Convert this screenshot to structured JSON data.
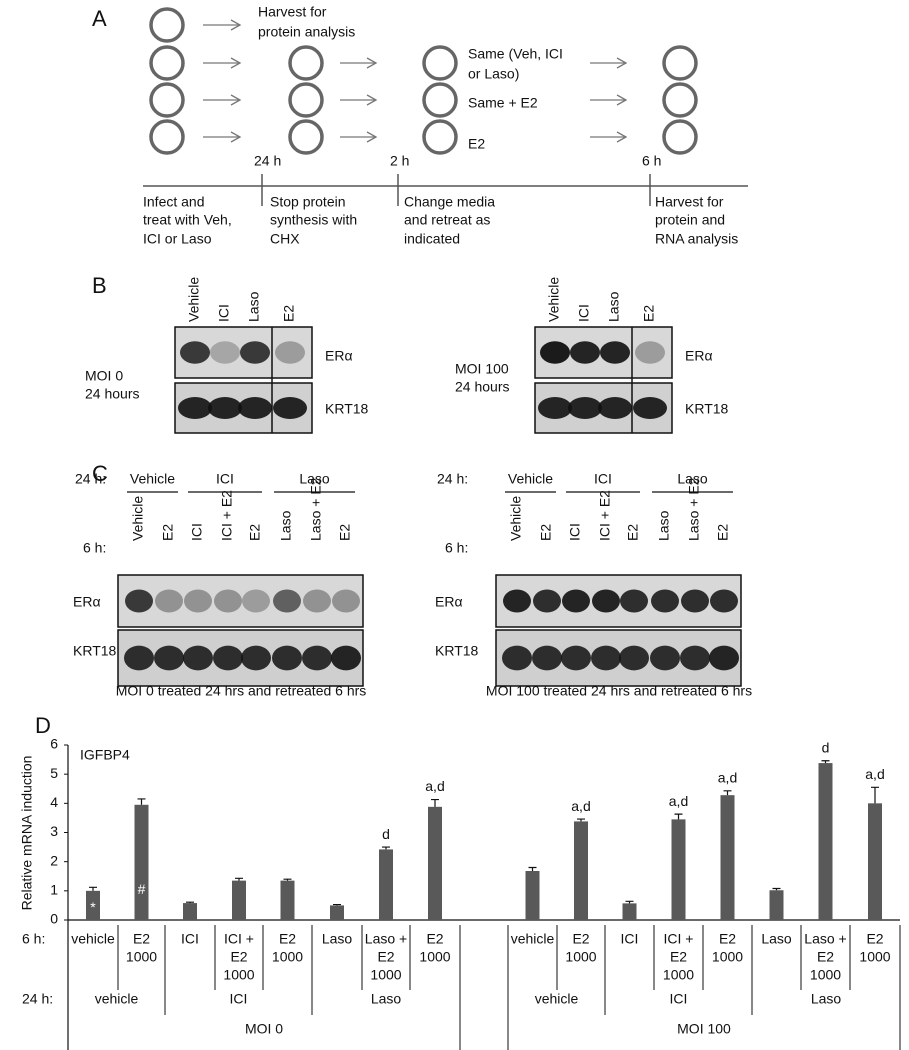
{
  "panel_a": {
    "label": "A",
    "harvest_note": [
      "Harvest for",
      "protein analysis"
    ],
    "treatments": [
      "Same (Veh, ICI",
      "or Laso)",
      "Same + E2",
      "E2"
    ],
    "times": [
      "24 h",
      "2 h",
      "6 h"
    ],
    "steps": [
      [
        "Infect and",
        "treat with Veh,",
        "ICI or Laso"
      ],
      [
        "Stop protein",
        "synthesis with",
        "CHX"
      ],
      [
        "Change media",
        "and retreat as",
        "indicated"
      ],
      [
        "Harvest for",
        "protein and",
        "RNA analysis"
      ]
    ]
  },
  "panel_b": {
    "label": "B",
    "lanes": [
      "Vehicle",
      "ICI",
      "Laso",
      "E2"
    ],
    "proteins": [
      "ERα",
      "KRT18"
    ],
    "conditions": [
      [
        "MOI 0",
        "24 hours"
      ],
      [
        "MOI 100",
        "24 hours"
      ]
    ]
  },
  "panel_c": {
    "label": "C",
    "row_labels": [
      "24 h:",
      "6 h:"
    ],
    "groups": [
      "Vehicle",
      "ICI",
      "Laso"
    ],
    "lanes": [
      "Vehicle",
      "E2",
      "ICI",
      "ICI + E2",
      "E2",
      "Laso",
      "Laso + E2",
      "E2"
    ],
    "proteins": [
      "ERα",
      "KRT18"
    ],
    "captions": [
      "MOI 0 treated 24 hrs and retreated 6 hrs",
      "MOI 100 treated 24 hrs and retreated 6 hrs"
    ]
  },
  "chart_data": {
    "type": "bar",
    "panel_label": "D",
    "title": "IGFBP4",
    "y_label": "Relative mRNA induction",
    "row_labels": [
      "6 h:",
      "24 h:"
    ],
    "categories": [
      [
        "vehicle"
      ],
      [
        "E2",
        "1000"
      ],
      [
        "ICI"
      ],
      [
        "ICI +",
        "E2",
        "1000"
      ],
      [
        "E2",
        "1000"
      ],
      [
        "Laso"
      ],
      [
        "Laso +",
        "E2",
        "1000"
      ],
      [
        "E2",
        "1000"
      ],
      [
        "vehicle"
      ],
      [
        "E2",
        "1000"
      ],
      [
        "ICI"
      ],
      [
        "ICI +",
        "E2",
        "1000"
      ],
      [
        "E2",
        "1000"
      ],
      [
        "Laso"
      ],
      [
        "Laso +",
        "E2",
        "1000"
      ],
      [
        "E2",
        "1000"
      ]
    ],
    "groups_24h": [
      "vehicle",
      "ICI",
      "Laso",
      "vehicle",
      "ICI",
      "Laso"
    ],
    "moi_groups": [
      "MOI 0",
      "MOI 100"
    ],
    "values": [
      1.0,
      3.95,
      0.58,
      1.35,
      1.35,
      0.5,
      2.42,
      3.88,
      1.68,
      3.38,
      0.57,
      3.45,
      4.28,
      1.02,
      5.38,
      4.0
    ],
    "errors": [
      0.12,
      0.2,
      0.03,
      0.08,
      0.05,
      0.03,
      0.08,
      0.25,
      0.12,
      0.08,
      0.07,
      0.18,
      0.15,
      0.06,
      0.08,
      0.55
    ],
    "annotations": [
      "*",
      "#",
      null,
      null,
      null,
      null,
      "d",
      "a,d",
      null,
      "a,d",
      null,
      "a,d",
      "a,d",
      null,
      "d",
      "a,d"
    ],
    "color": "#595959",
    "ylim": [
      0,
      6
    ],
    "yticks": [
      0,
      1,
      2,
      3,
      4,
      5,
      6
    ]
  }
}
